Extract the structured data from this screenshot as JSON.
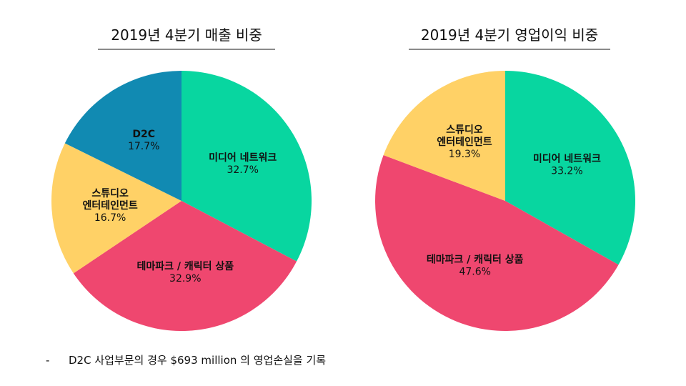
{
  "colors": {
    "media": "#08d6a0",
    "themepark": "#ef476f",
    "studio": "#ffd166",
    "d2c": "#118ab2"
  },
  "chart_data": [
    {
      "type": "pie",
      "title": "2019년 4분기 매출 비중",
      "slices": [
        {
          "name_lines": [
            "미디어 네트워크"
          ],
          "label": "32.7%",
          "value": 32.7,
          "color_key": "media"
        },
        {
          "name_lines": [
            "테마파크 / 캐릭터 상품"
          ],
          "label": "32.9%",
          "value": 32.9,
          "color_key": "themepark"
        },
        {
          "name_lines": [
            "스튜디오",
            "엔터테인먼트"
          ],
          "label": "16.7%",
          "value": 16.7,
          "color_key": "studio"
        },
        {
          "name_lines": [
            "D2C"
          ],
          "label": "17.7%",
          "value": 17.7,
          "color_key": "d2c"
        }
      ]
    },
    {
      "type": "pie",
      "title": "2019년 4분기 영업이익 비중",
      "slices": [
        {
          "name_lines": [
            "미디어 네트워크"
          ],
          "label": "33.2%",
          "value": 33.2,
          "color_key": "media"
        },
        {
          "name_lines": [
            "테마파크 / 캐릭터 상품"
          ],
          "label": "47.6%",
          "value": 47.6,
          "color_key": "themepark"
        },
        {
          "name_lines": [
            "스튜디오",
            "엔터테인먼트"
          ],
          "label": "19.3%",
          "value": 19.3,
          "color_key": "studio"
        }
      ]
    }
  ],
  "footnote": {
    "bullet": "-",
    "text": "D2C 사업부문의 경우 $693 million 의 영업손실을 기록"
  }
}
